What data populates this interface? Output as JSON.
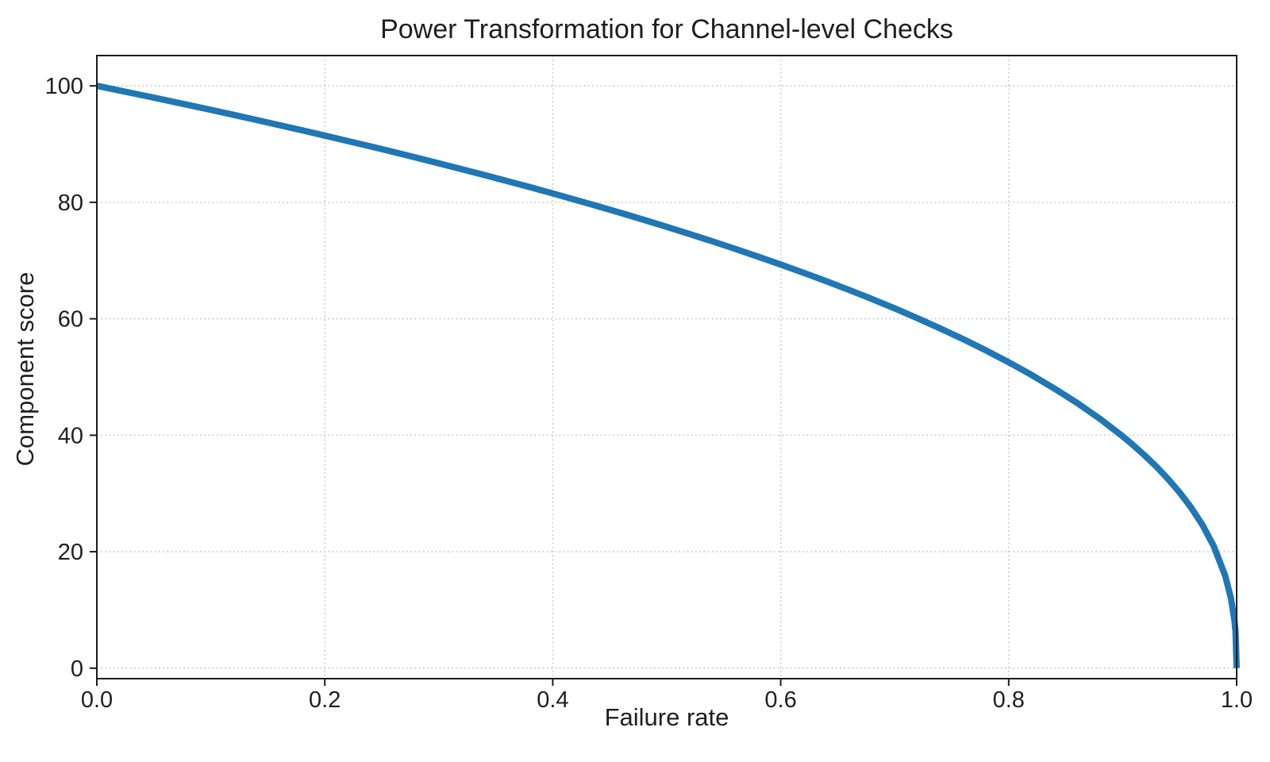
{
  "chart_data": {
    "type": "line",
    "title": "Power Transformation for Channel-level Checks",
    "xlabel": "Failure rate",
    "ylabel": "Component score",
    "xlim": [
      0.0,
      1.0
    ],
    "ylim": [
      -1.8,
      105.2
    ],
    "x_tick_values": [
      0.0,
      0.2,
      0.4,
      0.6,
      0.8,
      1.0
    ],
    "x_tick_labels": [
      "0.0",
      "0.2",
      "0.4",
      "0.6",
      "0.8",
      "1.0"
    ],
    "y_tick_values": [
      0,
      20,
      40,
      60,
      80,
      100
    ],
    "y_tick_labels": [
      "0",
      "20",
      "40",
      "60",
      "80",
      "100"
    ],
    "grid": true,
    "grid_style": "dotted",
    "legend": "none",
    "line_color": "#1f77b4",
    "formula": "score = 100 * (1 - failure_rate)^0.4",
    "series": [
      {
        "name": "component_score",
        "points": [
          [
            0.0,
            100.0
          ],
          [
            0.02,
            99.19
          ],
          [
            0.04,
            98.38
          ],
          [
            0.06,
            97.56
          ],
          [
            0.08,
            96.72
          ],
          [
            0.1,
            95.87
          ],
          [
            0.12,
            95.02
          ],
          [
            0.14,
            94.15
          ],
          [
            0.16,
            93.26
          ],
          [
            0.18,
            92.37
          ],
          [
            0.2,
            91.46
          ],
          [
            0.22,
            90.54
          ],
          [
            0.24,
            89.6
          ],
          [
            0.26,
            88.65
          ],
          [
            0.28,
            87.69
          ],
          [
            0.3,
            86.7
          ],
          [
            0.32,
            85.7
          ],
          [
            0.34,
            84.69
          ],
          [
            0.36,
            83.65
          ],
          [
            0.38,
            82.6
          ],
          [
            0.4,
            81.52
          ],
          [
            0.42,
            80.42
          ],
          [
            0.44,
            79.3
          ],
          [
            0.46,
            78.16
          ],
          [
            0.48,
            76.98
          ],
          [
            0.5,
            75.79
          ],
          [
            0.52,
            74.56
          ],
          [
            0.54,
            73.3
          ],
          [
            0.56,
            72.01
          ],
          [
            0.58,
            70.68
          ],
          [
            0.6,
            69.31
          ],
          [
            0.62,
            67.91
          ],
          [
            0.64,
            66.45
          ],
          [
            0.66,
            64.95
          ],
          [
            0.68,
            63.4
          ],
          [
            0.7,
            61.78
          ],
          [
            0.72,
            60.1
          ],
          [
            0.74,
            58.34
          ],
          [
            0.76,
            56.5
          ],
          [
            0.78,
            54.57
          ],
          [
            0.8,
            52.53
          ],
          [
            0.82,
            50.36
          ],
          [
            0.84,
            48.04
          ],
          [
            0.86,
            45.55
          ],
          [
            0.88,
            42.82
          ],
          [
            0.9,
            39.81
          ],
          [
            0.91,
            38.17
          ],
          [
            0.92,
            36.41
          ],
          [
            0.93,
            34.52
          ],
          [
            0.94,
            32.45
          ],
          [
            0.95,
            30.17
          ],
          [
            0.96,
            27.59
          ],
          [
            0.97,
            24.6
          ],
          [
            0.98,
            20.91
          ],
          [
            0.99,
            15.85
          ],
          [
            0.995,
            12.01
          ],
          [
            0.998,
            8.33
          ],
          [
            0.999,
            6.31
          ],
          [
            1.0,
            0.0
          ]
        ]
      }
    ]
  }
}
